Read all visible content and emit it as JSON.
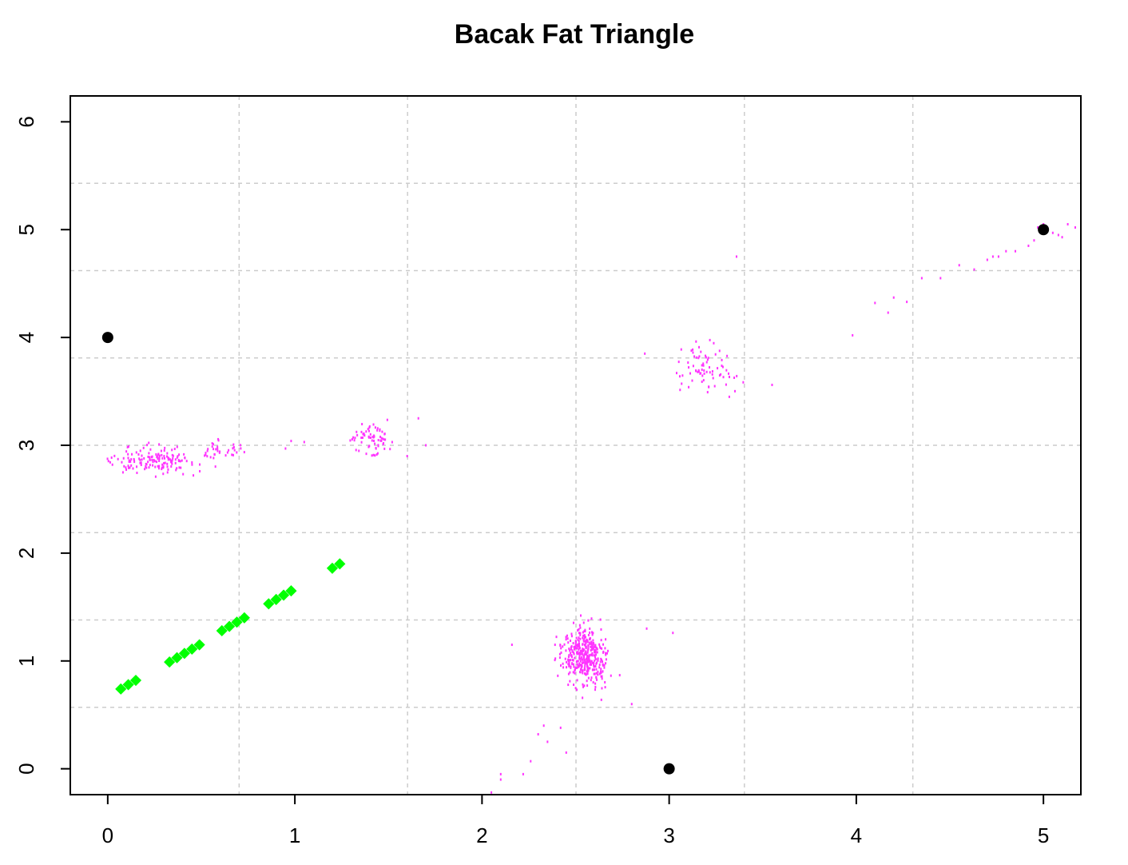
{
  "chart_data": {
    "type": "scatter",
    "title": "Bacak Fat Triangle",
    "xlabel": "",
    "ylabel": "",
    "xlim": [
      -0.2,
      5.2
    ],
    "ylim": [
      -0.24,
      6.24
    ],
    "x_ticks": [
      0,
      1,
      2,
      3,
      4,
      5
    ],
    "y_ticks": [
      0,
      1,
      2,
      3,
      4,
      5,
      6
    ],
    "grid": true,
    "legend": "none",
    "colors": {
      "vertices": "#000000",
      "line": "#00ff00",
      "cloud": "#ff33ff",
      "grid": "#cccccc"
    },
    "series": [
      {
        "role": "vertices",
        "marker": "circle",
        "points": [
          [
            0,
            4
          ],
          [
            3,
            0
          ],
          [
            5,
            5
          ]
        ]
      },
      {
        "role": "line",
        "marker": "diamond",
        "points": [
          [
            0.07,
            0.74
          ],
          [
            0.11,
            0.78
          ],
          [
            0.15,
            0.82
          ],
          [
            0.33,
            0.99
          ],
          [
            0.37,
            1.03
          ],
          [
            0.41,
            1.07
          ],
          [
            0.45,
            1.11
          ],
          [
            0.49,
            1.15
          ],
          [
            0.61,
            1.28
          ],
          [
            0.65,
            1.32
          ],
          [
            0.69,
            1.36
          ],
          [
            0.73,
            1.4
          ],
          [
            0.86,
            1.53
          ],
          [
            0.9,
            1.57
          ],
          [
            0.94,
            1.61
          ],
          [
            0.98,
            1.65
          ],
          [
            1.2,
            1.86
          ],
          [
            1.24,
            1.9
          ]
        ]
      },
      {
        "role": "cloud",
        "marker": "dot",
        "clusters": [
          {
            "cx": 0.25,
            "cy": 2.86,
            "sx": 0.2,
            "sy": 0.1,
            "n": 150
          },
          {
            "cx": 0.6,
            "cy": 2.95,
            "sx": 0.12,
            "sy": 0.07,
            "n": 35
          },
          {
            "cx": 1.4,
            "cy": 3.05,
            "sx": 0.1,
            "sy": 0.13,
            "n": 70
          },
          {
            "cx": 3.2,
            "cy": 3.72,
            "sx": 0.13,
            "sy": 0.18,
            "n": 75
          },
          {
            "cx": 2.55,
            "cy": 1.05,
            "sx": 0.1,
            "sy": 0.22,
            "n": 400
          }
        ],
        "points": [
          [
            0.98,
            3.04
          ],
          [
            1.05,
            3.03
          ],
          [
            0.95,
            2.97
          ],
          [
            1.6,
            2.9
          ],
          [
            1.7,
            3.0
          ],
          [
            1.66,
            3.25
          ],
          [
            2.05,
            -0.22
          ],
          [
            2.1,
            -0.05
          ],
          [
            2.1,
            -0.1
          ],
          [
            2.22,
            -0.05
          ],
          [
            2.26,
            0.07
          ],
          [
            2.3,
            0.32
          ],
          [
            2.33,
            0.4
          ],
          [
            2.35,
            0.25
          ],
          [
            2.42,
            0.38
          ],
          [
            2.45,
            0.15
          ],
          [
            2.16,
            1.15
          ],
          [
            2.88,
            1.3
          ],
          [
            3.02,
            1.26
          ],
          [
            2.8,
            0.6
          ],
          [
            2.87,
            3.85
          ],
          [
            3.04,
            3.67
          ],
          [
            3.36,
            4.75
          ],
          [
            3.55,
            3.56
          ],
          [
            3.98,
            4.02
          ],
          [
            4.1,
            4.32
          ],
          [
            4.17,
            4.23
          ],
          [
            4.2,
            4.37
          ],
          [
            4.27,
            4.33
          ],
          [
            4.35,
            4.55
          ],
          [
            4.45,
            4.55
          ],
          [
            4.55,
            4.67
          ],
          [
            4.63,
            4.63
          ],
          [
            4.7,
            4.72
          ],
          [
            4.73,
            4.75
          ],
          [
            4.76,
            4.75
          ],
          [
            4.8,
            4.8
          ],
          [
            4.85,
            4.8
          ],
          [
            4.92,
            4.85
          ],
          [
            4.95,
            4.9
          ],
          [
            4.97,
            5.02
          ],
          [
            5.0,
            5.05
          ],
          [
            5.05,
            4.97
          ],
          [
            5.08,
            4.95
          ],
          [
            5.1,
            4.93
          ],
          [
            5.13,
            5.05
          ],
          [
            5.17,
            5.02
          ],
          [
            5.2,
            5.03
          ]
        ]
      }
    ]
  }
}
